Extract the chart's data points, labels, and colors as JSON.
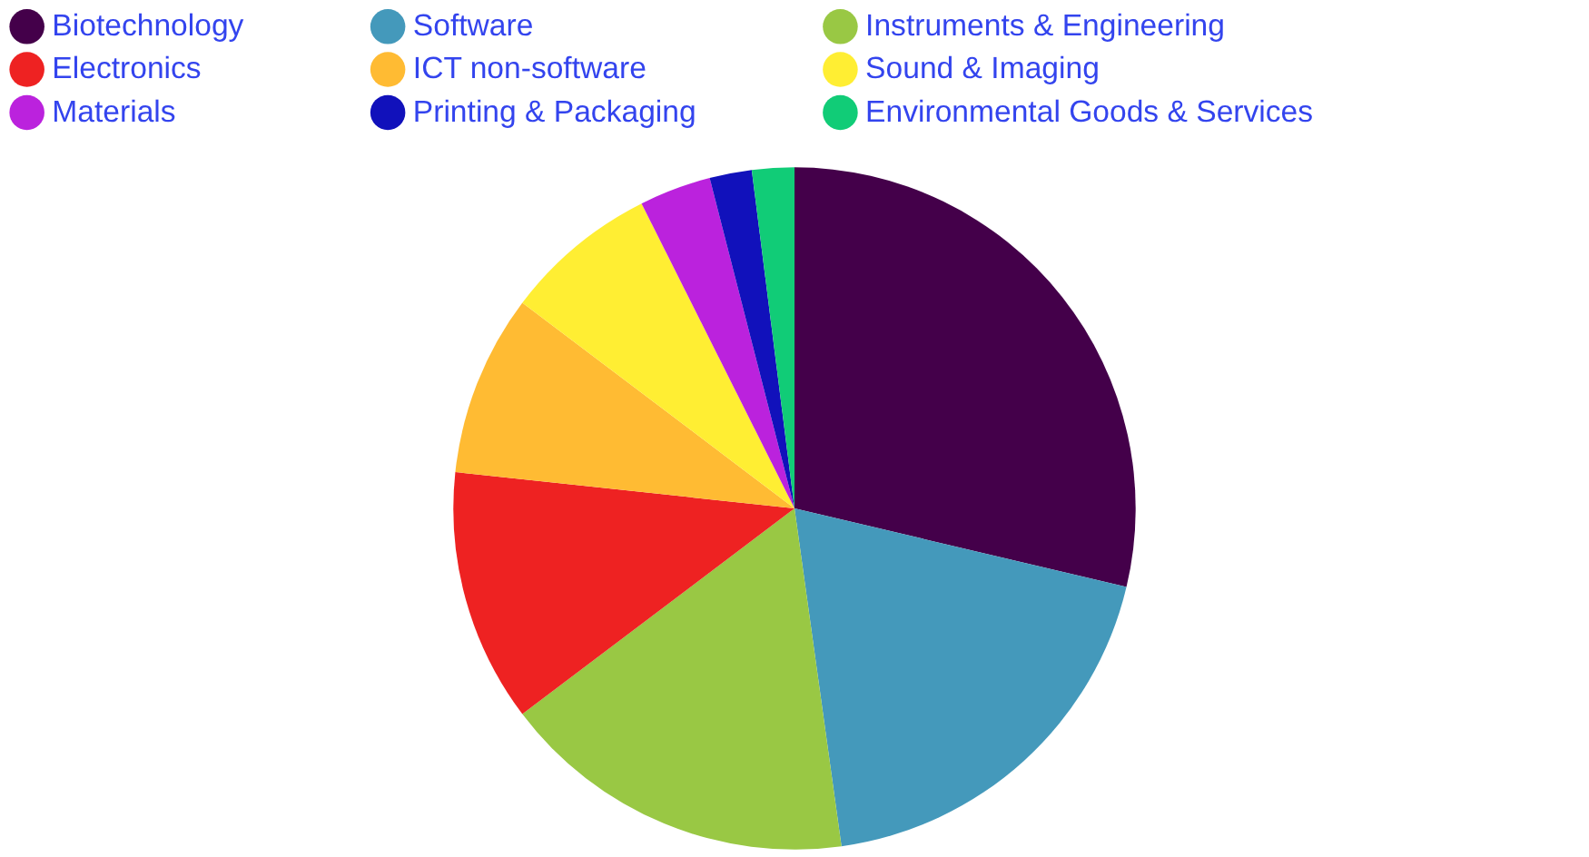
{
  "chart_data": {
    "type": "pie",
    "categories": [
      "Biotechnology",
      "Software",
      "Instruments & Engineering",
      "Electronics",
      "ICT non-software",
      "Sound & Imaging",
      "Materials",
      "Printing & Packaging",
      "Environmental Goods & Services"
    ],
    "values": [
      28.7,
      19.1,
      16.9,
      12.0,
      8.6,
      7.3,
      3.4,
      2.0,
      2.0
    ],
    "colors": [
      "#44004a",
      "#4499bb",
      "#99c844",
      "#ee2222",
      "#ffbb33",
      "#ffee33",
      "#bb22dd",
      "#1111bb",
      "#11cc77"
    ],
    "legend": "top"
  }
}
